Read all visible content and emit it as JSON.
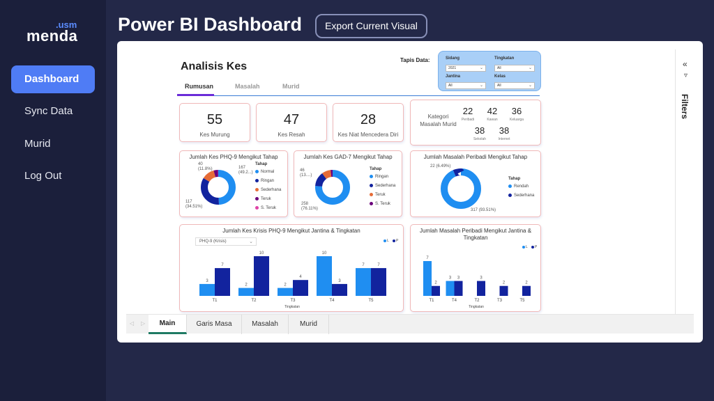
{
  "sidebar": {
    "logo_small": ".usm",
    "logo_main": "menda",
    "items": [
      {
        "label": "Dashboard"
      },
      {
        "label": "Sync Data"
      },
      {
        "label": "Murid"
      },
      {
        "label": "Log Out"
      }
    ]
  },
  "header": {
    "title": "Power BI Dashboard",
    "export_label": "Export Current Visual"
  },
  "report": {
    "title": "Analisis Kes",
    "tabs": [
      {
        "label": "Rumusan"
      },
      {
        "label": "Masalah"
      },
      {
        "label": "Murid"
      }
    ],
    "filters_label": "Filters",
    "slicer": {
      "label": "Tapis Data:",
      "sidang": {
        "label": "Sidang",
        "value": "2021"
      },
      "tingkatan": {
        "label": "Tingkatan",
        "value": "All"
      },
      "jantina": {
        "label": "Jantina",
        "value": "All"
      },
      "kelas": {
        "label": "Kelas",
        "value": "All"
      }
    },
    "kpis": [
      {
        "value": "55",
        "label": "Kes Murung"
      },
      {
        "value": "47",
        "label": "Kes Resah"
      },
      {
        "value": "28",
        "label": "Kes Niat Mencedera Diri"
      }
    ],
    "kategori": {
      "label": "Kategori Masalah Murid",
      "items": [
        {
          "value": "22",
          "label": "Peribadi"
        },
        {
          "value": "42",
          "label": "Kawan"
        },
        {
          "value": "36",
          "label": "Keluarga"
        },
        {
          "value": "38",
          "label": "Sekolah"
        },
        {
          "value": "38",
          "label": "Internet"
        }
      ]
    },
    "page_tabs": [
      {
        "label": "Main"
      },
      {
        "label": "Garis Masa"
      },
      {
        "label": "Masalah"
      },
      {
        "label": "Murid"
      }
    ]
  },
  "colors": {
    "blue_light": "#1f8ef1",
    "blue_dark": "#12239e",
    "orange": "#e66c37",
    "purple": "#6b007b",
    "pink": "#e044a7"
  },
  "chart_data": [
    {
      "type": "pie",
      "title": "Jumlah Kes PHQ-9 Mengikut Tahap",
      "legend_title": "Tahap",
      "categories": [
        "Normal",
        "Ringan",
        "Sederhana",
        "Teruk",
        "S. Teruk"
      ],
      "values": [
        167,
        117,
        40,
        14,
        1
      ],
      "data_labels": [
        {
          "value": "167",
          "pct": "(49.2...)"
        },
        {
          "value": "117",
          "pct": "(34.51%)"
        },
        {
          "value": "40",
          "pct": "(11.8%)"
        }
      ]
    },
    {
      "type": "pie",
      "title": "Jumlah Kes GAD-7 Mengikut Tahap",
      "legend_title": "Tahap",
      "categories": [
        "Ringan",
        "Sederhana",
        "Teruk",
        "S. Teruk"
      ],
      "values": [
        258,
        46,
        28,
        7
      ],
      "data_labels": [
        {
          "value": "258",
          "pct": "(76.11%)"
        },
        {
          "value": "46",
          "pct": "(13....)"
        }
      ]
    },
    {
      "type": "pie",
      "title": "Jumlah Masalah Peribadi Mengikut Tahap",
      "legend_title": "Tahap",
      "categories": [
        "Rendah",
        "Sederhana"
      ],
      "values": [
        317,
        22
      ],
      "data_labels": [
        {
          "value": "317",
          "pct": "(93.51%)"
        },
        {
          "value": "22",
          "pct": "(6.49%)"
        }
      ]
    },
    {
      "type": "bar",
      "title": "Jumlah Kes Krisis PHQ-9 Mengikut Jantina & Tingkatan",
      "dropdown_value": "PHQ-9 (Krisis)",
      "xlabel": "Tingkatan",
      "ylim": [
        0,
        10
      ],
      "categories": [
        "T1",
        "T2",
        "T3",
        "T4",
        "T5"
      ],
      "series": [
        {
          "name": "L",
          "values": [
            3,
            2,
            2,
            10,
            7
          ]
        },
        {
          "name": "P",
          "values": [
            7,
            10,
            4,
            3,
            7
          ]
        }
      ]
    },
    {
      "type": "bar",
      "title": "Jumlah Masalah Peribadi Mengikut Jantina & Tingkatan",
      "xlabel": "Tingkatan",
      "ylim": [
        0,
        7
      ],
      "categories": [
        "T1",
        "T4",
        "T2",
        "T3",
        "T5"
      ],
      "series": [
        {
          "name": "L",
          "values": [
            7,
            3,
            null,
            null,
            null
          ]
        },
        {
          "name": "P",
          "values": [
            2,
            3,
            3,
            2,
            2
          ]
        }
      ]
    }
  ]
}
